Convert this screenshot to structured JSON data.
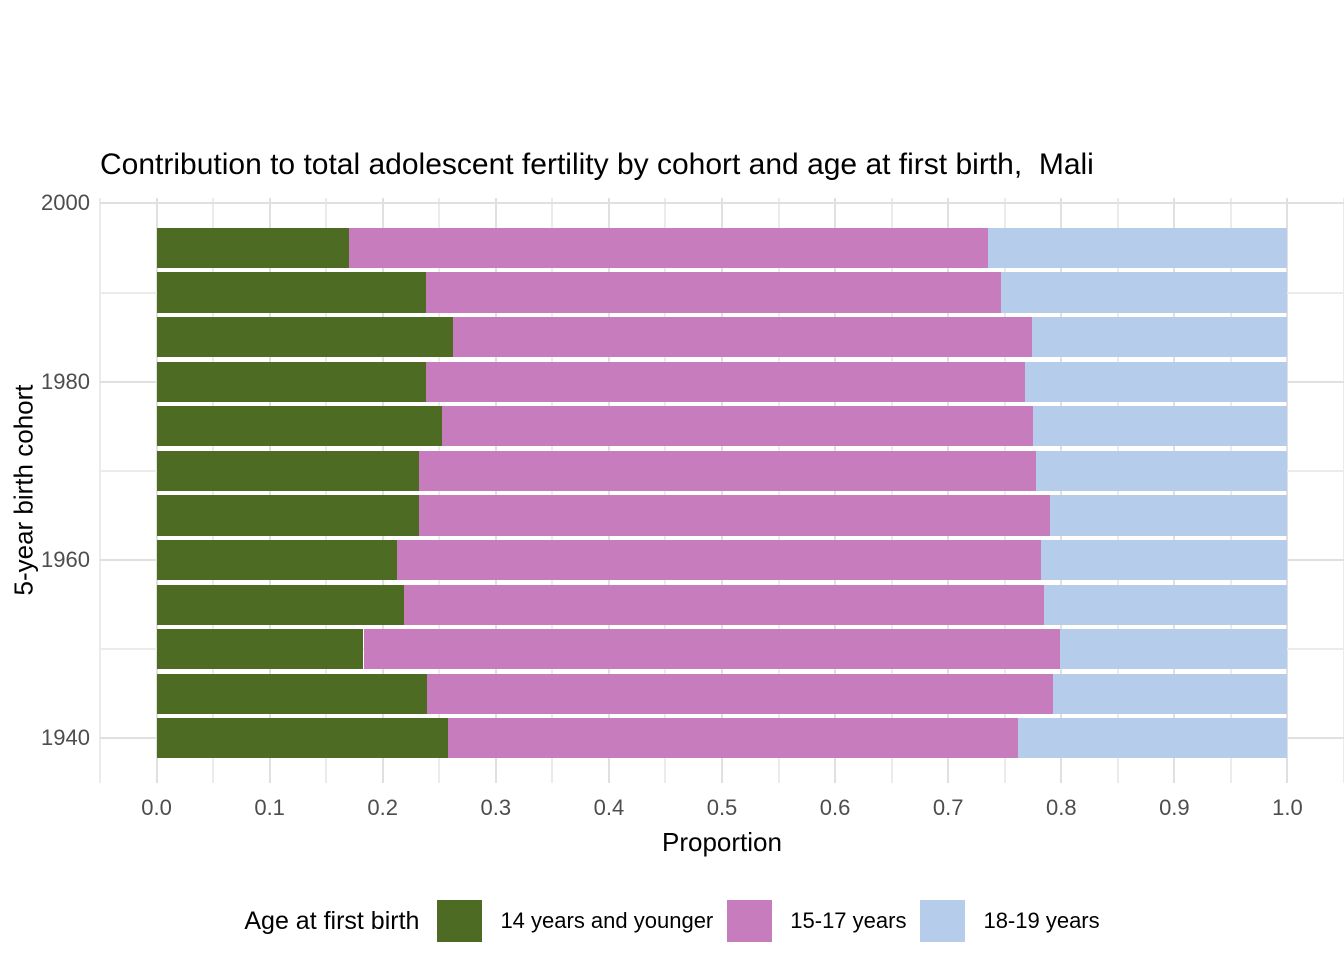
{
  "title": "Contribution to total adolescent fertility by cohort and age at first birth,  Mali",
  "chart_data": {
    "type": "bar",
    "orientation": "horizontal",
    "stacked": true,
    "title": "Contribution to total adolescent fertility by cohort and age at first birth,  Mali",
    "xlabel": "Proportion",
    "ylabel": "5-year birth cohort",
    "legend_title": "Age at first birth",
    "legend_position": "bottom",
    "grid": true,
    "categories": [
      "1995",
      "1990",
      "1985",
      "1980",
      "1975",
      "1970",
      "1965",
      "1960",
      "1955",
      "1950",
      "1945",
      "1940"
    ],
    "series": [
      {
        "name": "14 years and younger",
        "color": "#4d6b23",
        "values": [
          0.17,
          0.238,
          0.262,
          0.238,
          0.252,
          0.232,
          0.232,
          0.213,
          0.219,
          0.183,
          0.239,
          0.258
        ]
      },
      {
        "name": "15-17 years",
        "color": "#c77cbd",
        "values": [
          0.565,
          0.509,
          0.512,
          0.53,
          0.523,
          0.546,
          0.558,
          0.569,
          0.566,
          0.616,
          0.554,
          0.504
        ]
      },
      {
        "name": "18-19 years",
        "color": "#b5cdeb",
        "values": [
          0.265,
          0.253,
          0.226,
          0.232,
          0.225,
          0.222,
          0.21,
          0.218,
          0.215,
          0.201,
          0.207,
          0.238
        ]
      }
    ],
    "xlim": [
      -0.05,
      1.05
    ],
    "ylim": [
      1935.0,
      2000.6
    ],
    "xticks": {
      "values": [
        0.0,
        0.1,
        0.2,
        0.3,
        0.4,
        0.5,
        0.6,
        0.7,
        0.8,
        0.9,
        1.0
      ],
      "labels": [
        "0.0",
        "0.1",
        "0.2",
        "0.3",
        "0.4",
        "0.5",
        "0.6",
        "0.7",
        "0.8",
        "0.9",
        "1.0"
      ]
    },
    "yticks": {
      "values": [
        2000,
        1980,
        1960,
        1940
      ],
      "labels": [
        "2000",
        "1980",
        "1960",
        "1940"
      ]
    },
    "x_grid": {
      "major_step": 0.1,
      "minor_step": 0.05
    },
    "y_grid": {
      "major": [
        2000,
        1980,
        1960,
        1940
      ],
      "minor": [
        1990,
        1970,
        1950
      ]
    },
    "bar_span_years": 5,
    "bar_width_fraction": 0.9,
    "colors": {
      "background": "#ffffff",
      "grid_major": "#e0e0e0",
      "grid_minor": "#ebebeb",
      "tick_text": "#4d4d4d",
      "text": "#000000"
    }
  }
}
